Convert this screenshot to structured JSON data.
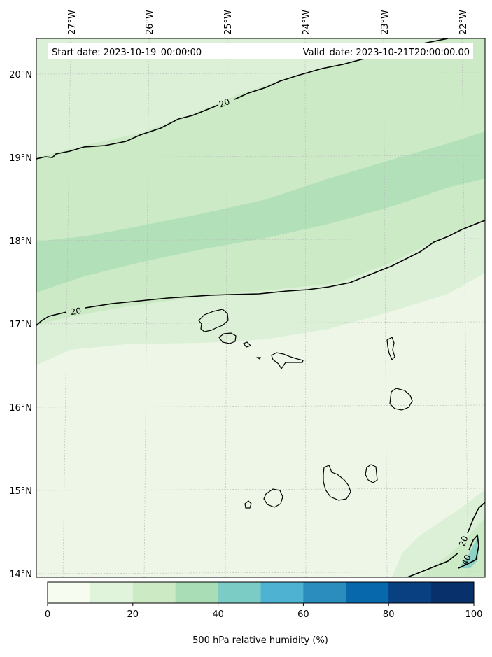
{
  "header": {
    "start_date": "Start date: 2023-10-19_00:00:00",
    "valid_date": "Valid_date: 2023-10-21T20:00:00.00"
  },
  "map": {
    "lon_labels": [
      "27°W",
      "26°W",
      "25°W",
      "24°W",
      "23°W",
      "22°W"
    ],
    "lat_labels": [
      "20°N",
      "19°N",
      "18°N",
      "17°N",
      "16°N",
      "15°N",
      "14°N"
    ],
    "contour_labels": [
      "20",
      "20",
      "20",
      "40"
    ]
  },
  "colorbar": {
    "label": "500 hPa relative humidity (%)",
    "ticks": [
      "0",
      "20",
      "40",
      "60",
      "80",
      "100"
    ],
    "colors": [
      "#f7fcf0",
      "#e0f3db",
      "#ccebc5",
      "#a8ddb5",
      "#7bccc4",
      "#4eb3d3",
      "#2b8cbe",
      "#0868ac",
      "#084081",
      "#08306b"
    ]
  },
  "colors": {
    "band_0_10": "#eef7e7",
    "band_10_20": "#dcf0d7",
    "band_20_30": "#cdeac6",
    "band_30_40": "#b2e0b9",
    "band_40_50": "#8ed2c6"
  }
}
